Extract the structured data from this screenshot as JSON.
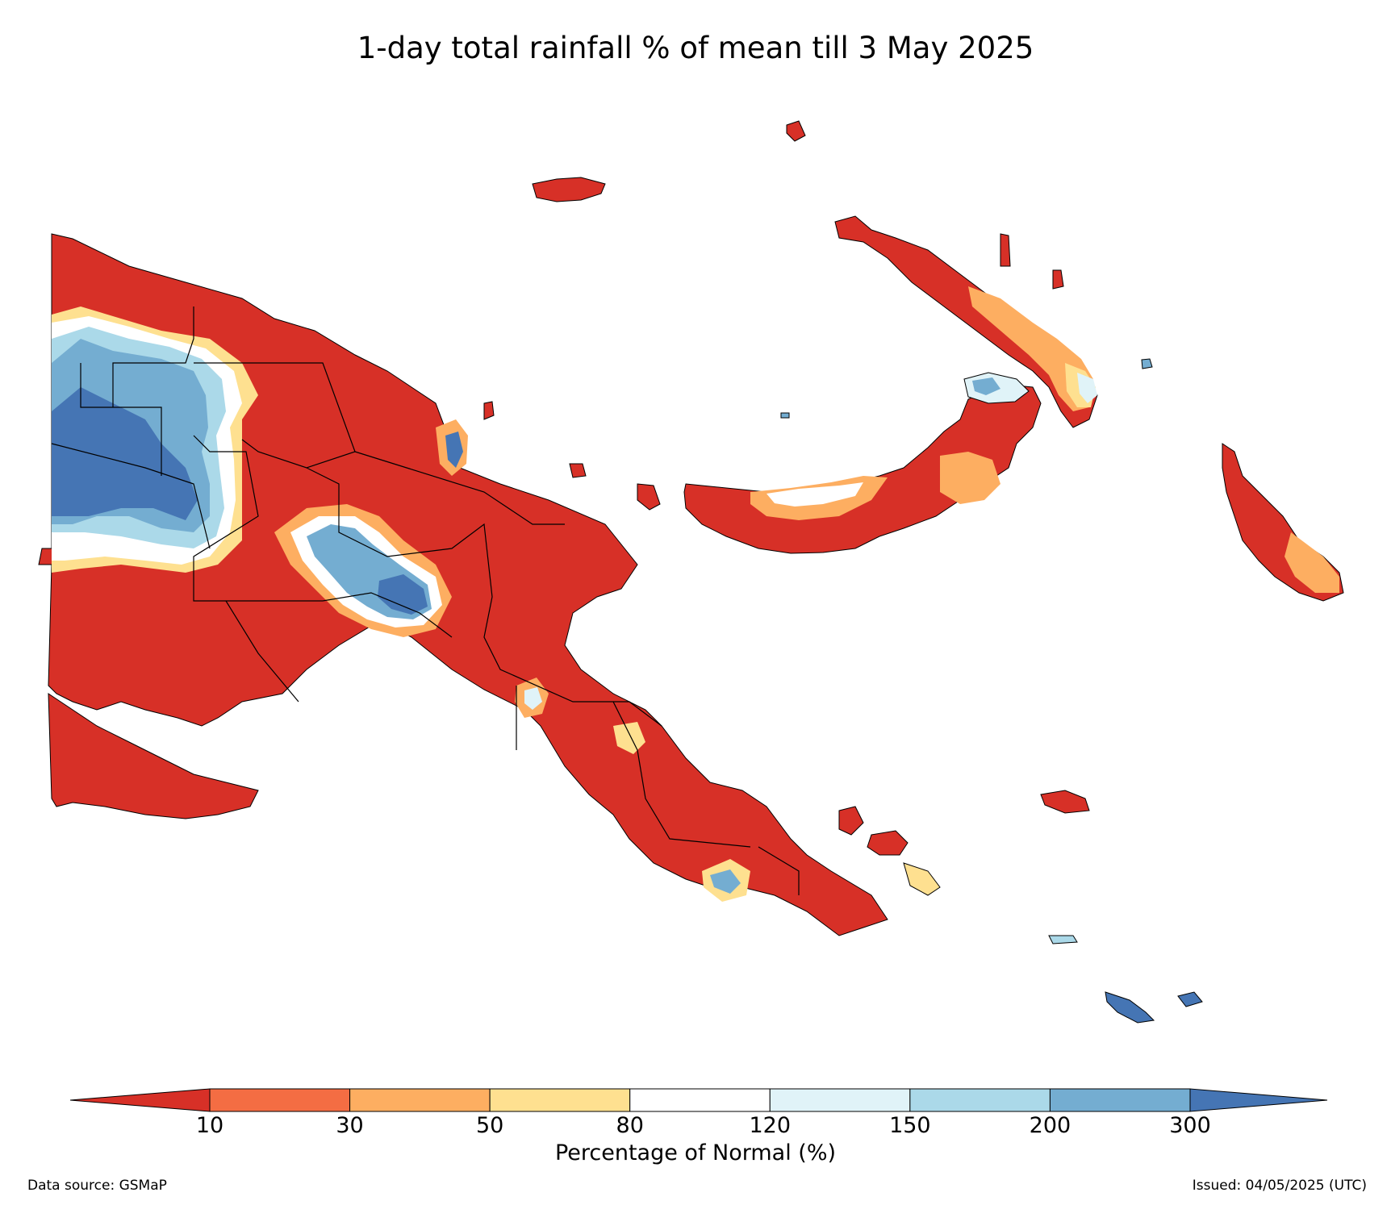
{
  "title": "1-day total rainfall % of mean till 3 May 2025",
  "colorbar": {
    "label": "Percentage of Normal (%)",
    "ticks": [
      "10",
      "30",
      "50",
      "80",
      "120",
      "150",
      "200",
      "300"
    ],
    "colors": {
      "under": "#d73027",
      "10-30": "#f46d43",
      "30-50": "#fdae61",
      "50-80": "#fee090",
      "80-120": "#ffffff",
      "120-150": "#e0f3f8",
      "150-200": "#abd9e9",
      "200-300": "#74add1",
      "over": "#4575b4"
    }
  },
  "footer": {
    "source": "Data source: GSMaP",
    "issued": "Issued: 04/05/2025 (UTC)"
  }
}
